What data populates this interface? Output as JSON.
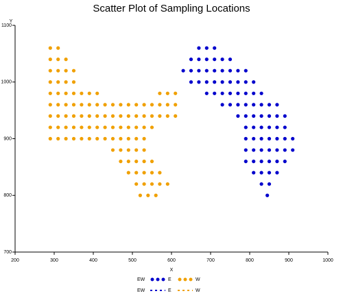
{
  "chart_data": {
    "type": "scatter",
    "title": "Scatter Plot of Sampling Locations",
    "x_label": "X",
    "y_label": "Y",
    "legend_title": "EW",
    "xlim": [
      200,
      1000
    ],
    "ylim": [
      700,
      1100
    ],
    "xticks": [
      200,
      300,
      400,
      500,
      600,
      700,
      800,
      900,
      1000
    ],
    "yticks": [
      700,
      800,
      900,
      1000,
      1100
    ],
    "series": [
      {
        "name": "E",
        "color": "#0000cc",
        "x": [
          670,
          690,
          710,
          650,
          670,
          690,
          710,
          730,
          750,
          630,
          650,
          670,
          690,
          710,
          730,
          750,
          770,
          790,
          650,
          670,
          690,
          710,
          730,
          750,
          770,
          790,
          810,
          690,
          710,
          730,
          750,
          770,
          790,
          810,
          830,
          730,
          750,
          770,
          790,
          810,
          830,
          850,
          870,
          770,
          790,
          810,
          830,
          850,
          870,
          890,
          790,
          810,
          830,
          850,
          870,
          890,
          790,
          810,
          830,
          850,
          870,
          890,
          910,
          790,
          810,
          830,
          850,
          870,
          890,
          910,
          790,
          810,
          830,
          850,
          870,
          890,
          810,
          830,
          850,
          870,
          830,
          850,
          845
        ],
        "y": [
          1060,
          1060,
          1060,
          1040,
          1040,
          1040,
          1040,
          1040,
          1040,
          1020,
          1020,
          1020,
          1020,
          1020,
          1020,
          1020,
          1020,
          1020,
          1000,
          1000,
          1000,
          1000,
          1000,
          1000,
          1000,
          1000,
          1000,
          980,
          980,
          980,
          980,
          980,
          980,
          980,
          980,
          960,
          960,
          960,
          960,
          960,
          960,
          960,
          960,
          940,
          940,
          940,
          940,
          940,
          940,
          940,
          920,
          920,
          920,
          920,
          920,
          920,
          900,
          900,
          900,
          900,
          900,
          900,
          900,
          880,
          880,
          880,
          880,
          880,
          880,
          880,
          860,
          860,
          860,
          860,
          860,
          860,
          840,
          840,
          840,
          840,
          820,
          820,
          800
        ]
      },
      {
        "name": "W",
        "color": "#f0a000",
        "x": [
          290,
          310,
          290,
          310,
          330,
          290,
          310,
          330,
          350,
          290,
          310,
          330,
          350,
          290,
          310,
          330,
          350,
          370,
          390,
          410,
          570,
          590,
          610,
          290,
          310,
          330,
          350,
          370,
          390,
          410,
          430,
          450,
          470,
          490,
          510,
          530,
          550,
          570,
          590,
          610,
          290,
          310,
          330,
          350,
          370,
          390,
          410,
          430,
          450,
          470,
          490,
          510,
          530,
          550,
          570,
          590,
          610,
          290,
          310,
          330,
          350,
          370,
          390,
          410,
          430,
          450,
          470,
          490,
          510,
          530,
          550,
          290,
          310,
          330,
          350,
          370,
          390,
          410,
          430,
          450,
          470,
          490,
          510,
          530,
          450,
          470,
          490,
          510,
          530,
          470,
          490,
          510,
          530,
          550,
          490,
          510,
          530,
          550,
          570,
          510,
          530,
          550,
          570,
          590,
          520,
          540,
          560
        ],
        "y": [
          1060,
          1060,
          1040,
          1040,
          1040,
          1020,
          1020,
          1020,
          1020,
          1000,
          1000,
          1000,
          1000,
          980,
          980,
          980,
          980,
          980,
          980,
          980,
          980,
          980,
          980,
          960,
          960,
          960,
          960,
          960,
          960,
          960,
          960,
          960,
          960,
          960,
          960,
          960,
          960,
          960,
          960,
          960,
          940,
          940,
          940,
          940,
          940,
          940,
          940,
          940,
          940,
          940,
          940,
          940,
          940,
          940,
          940,
          940,
          940,
          920,
          920,
          920,
          920,
          920,
          920,
          920,
          920,
          920,
          920,
          920,
          920,
          920,
          920,
          900,
          900,
          900,
          900,
          900,
          900,
          900,
          900,
          900,
          900,
          900,
          900,
          900,
          880,
          880,
          880,
          880,
          880,
          860,
          860,
          860,
          860,
          860,
          840,
          840,
          840,
          840,
          840,
          820,
          820,
          820,
          820,
          820,
          800,
          800,
          800
        ]
      }
    ]
  }
}
